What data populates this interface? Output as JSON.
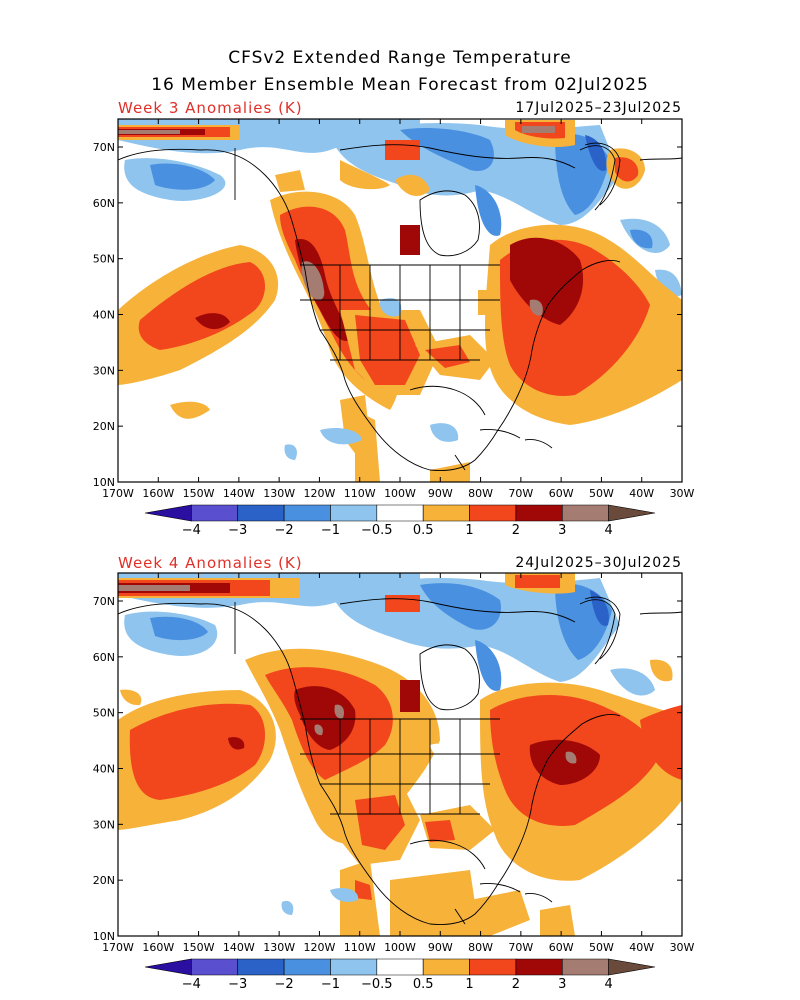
{
  "title_line1": "CFSv2 Extended Range Temperature",
  "title_line2": "16 Member Ensemble Mean Forecast from 02Jul2025",
  "panels": [
    {
      "label": "Week 3 Anomalies (K)",
      "dates": "17Jul2025–23Jul2025"
    },
    {
      "label": "Week 4 Anomalies (K)",
      "dates": "24Jul2025–30Jul2025"
    }
  ],
  "lon_labels": [
    "170W",
    "160W",
    "150W",
    "140W",
    "130W",
    "120W",
    "110W",
    "100W",
    "90W",
    "80W",
    "70W",
    "60W",
    "50W",
    "40W",
    "30W"
  ],
  "lat_labels": [
    "70N",
    "60N",
    "50N",
    "40N",
    "30N",
    "20N",
    "10N"
  ],
  "colorbar": {
    "tick_labels": [
      "−4",
      "−3",
      "−2",
      "−1",
      "−0.5",
      "0.5",
      "1",
      "2",
      "3",
      "4"
    ],
    "colors": [
      "#2a0fa0",
      "#5a4fcf",
      "#2a62c8",
      "#4a90e0",
      "#8ec4ee",
      "#ffffff",
      "#f7b23a",
      "#f2461c",
      "#a00808",
      "#a47c72",
      "#6a4a3a"
    ]
  }
}
